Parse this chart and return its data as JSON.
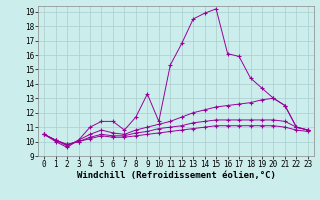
{
  "background_color": "#cbeeed",
  "grid_color": "#aacccc",
  "line_color": "#990099",
  "marker": "+",
  "xlabel": "Windchill (Refroidissement éolien,°C)",
  "xlabel_fontsize": 6.5,
  "tick_fontsize": 5.5,
  "xlim": [
    -0.5,
    23.5
  ],
  "ylim": [
    9,
    19.4
  ],
  "xticks": [
    0,
    1,
    2,
    3,
    4,
    5,
    6,
    7,
    8,
    9,
    10,
    11,
    12,
    13,
    14,
    15,
    16,
    17,
    18,
    19,
    20,
    21,
    22,
    23
  ],
  "yticks": [
    9,
    10,
    11,
    12,
    13,
    14,
    15,
    16,
    17,
    18,
    19
  ],
  "series": [
    {
      "x": [
        0,
        1,
        2,
        3,
        4,
        5,
        6,
        7,
        8,
        9,
        10,
        11,
        12,
        13,
        14,
        15,
        16,
        17,
        18,
        19,
        20,
        21,
        22,
        23
      ],
      "y": [
        10.5,
        10.0,
        9.6,
        10.1,
        11.0,
        11.4,
        11.4,
        10.8,
        11.7,
        13.3,
        11.4,
        15.3,
        16.8,
        18.5,
        18.9,
        19.2,
        16.1,
        15.9,
        14.4,
        13.7,
        13.0,
        12.5,
        11.0,
        10.8
      ]
    },
    {
      "x": [
        0,
        1,
        2,
        3,
        4,
        5,
        6,
        7,
        8,
        9,
        10,
        11,
        12,
        13,
        14,
        15,
        16,
        17,
        18,
        19,
        20,
        21,
        22,
        23
      ],
      "y": [
        10.5,
        10.1,
        9.7,
        10.1,
        10.5,
        10.8,
        10.6,
        10.5,
        10.8,
        11.0,
        11.2,
        11.4,
        11.7,
        12.0,
        12.2,
        12.4,
        12.5,
        12.6,
        12.7,
        12.9,
        13.0,
        12.5,
        11.0,
        10.8
      ]
    },
    {
      "x": [
        0,
        1,
        2,
        3,
        4,
        5,
        6,
        7,
        8,
        9,
        10,
        11,
        12,
        13,
        14,
        15,
        16,
        17,
        18,
        19,
        20,
        21,
        22,
        23
      ],
      "y": [
        10.5,
        10.1,
        9.8,
        10.0,
        10.3,
        10.5,
        10.4,
        10.4,
        10.6,
        10.7,
        10.9,
        11.0,
        11.1,
        11.3,
        11.4,
        11.5,
        11.5,
        11.5,
        11.5,
        11.5,
        11.5,
        11.4,
        11.0,
        10.8
      ]
    },
    {
      "x": [
        0,
        1,
        2,
        3,
        4,
        5,
        6,
        7,
        8,
        9,
        10,
        11,
        12,
        13,
        14,
        15,
        16,
        17,
        18,
        19,
        20,
        21,
        22,
        23
      ],
      "y": [
        10.5,
        10.1,
        9.8,
        10.0,
        10.2,
        10.4,
        10.3,
        10.3,
        10.4,
        10.5,
        10.6,
        10.7,
        10.8,
        10.9,
        11.0,
        11.1,
        11.1,
        11.1,
        11.1,
        11.1,
        11.1,
        11.0,
        10.8,
        10.7
      ]
    }
  ]
}
